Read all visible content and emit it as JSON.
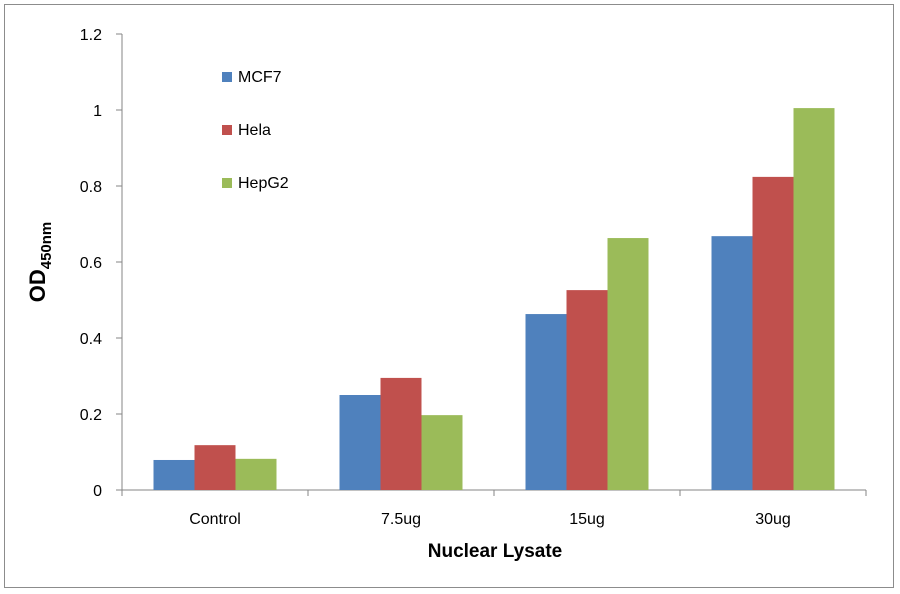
{
  "chart_data": {
    "type": "bar",
    "title": "",
    "xlabel": "Nuclear Lysate",
    "ylabel": "OD",
    "ylabel_subscript": "450nm",
    "categories": [
      "Control",
      "7.5ug",
      "15ug",
      "30ug"
    ],
    "series": [
      {
        "name": "MCF7",
        "color": "#4f81bd",
        "values": [
          0.079,
          0.25,
          0.463,
          0.668
        ]
      },
      {
        "name": "Hela",
        "color": "#c0504d",
        "values": [
          0.118,
          0.295,
          0.526,
          0.824
        ]
      },
      {
        "name": "HepG2",
        "color": "#9bbb59",
        "values": [
          0.082,
          0.197,
          0.663,
          1.005
        ]
      }
    ],
    "ylim": [
      0,
      1.2
    ],
    "yticks": [
      "0",
      "0.2",
      "0.4",
      "0.6",
      "0.8",
      "1",
      "1.2"
    ],
    "grid": false,
    "legend": "top-left"
  }
}
